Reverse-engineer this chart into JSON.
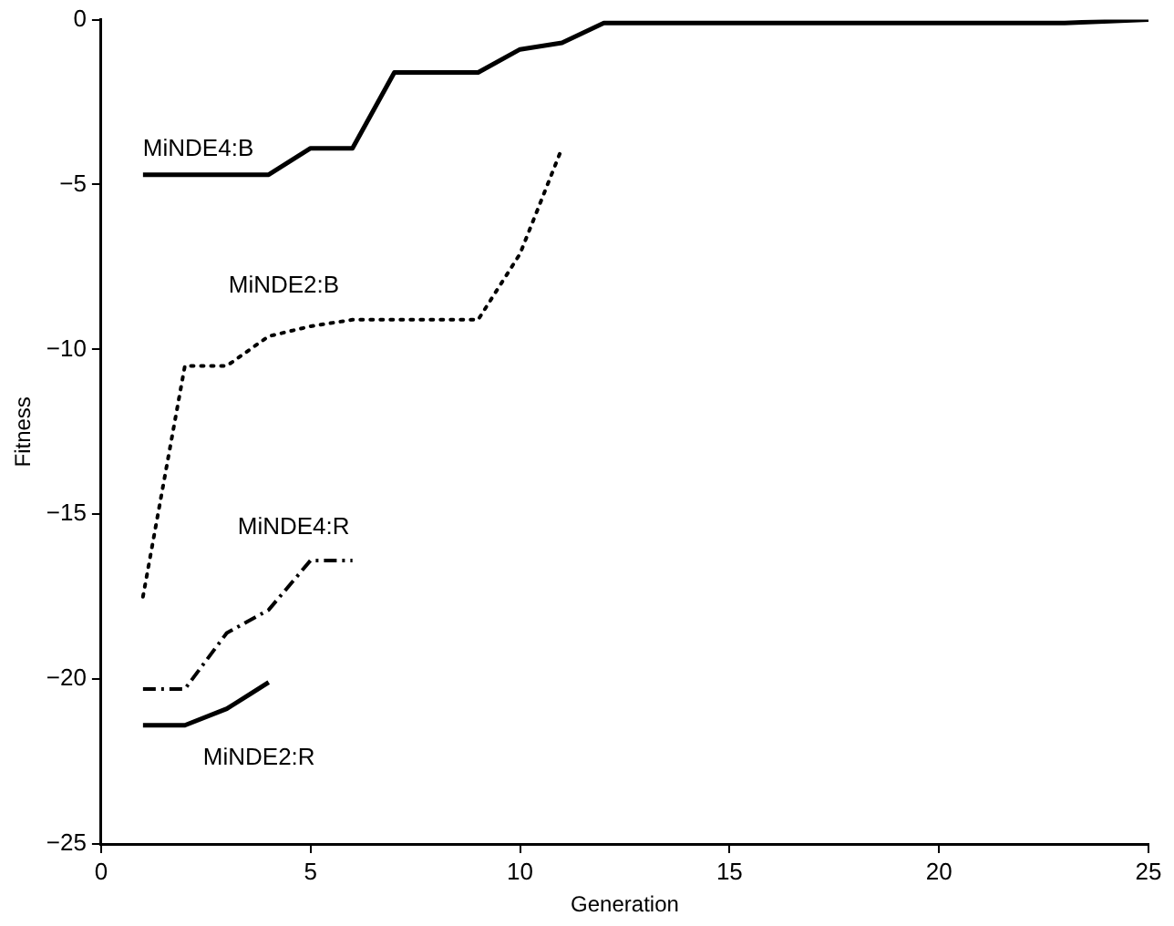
{
  "chart_data": {
    "type": "line",
    "xlabel": "Generation",
    "ylabel": "Fitness",
    "xlim": [
      0,
      25
    ],
    "xticks": [
      0,
      5,
      10,
      15,
      20,
      25
    ],
    "ylim": [
      -25,
      0
    ],
    "yticks": [
      -25,
      -20,
      -15,
      -10,
      -5,
      0
    ],
    "grid": false,
    "legend": false,
    "marker": "none",
    "series": [
      {
        "name": "MiNDE4:B",
        "color": "#000000",
        "line_style": "solid",
        "x": [
          1,
          4,
          5,
          6,
          7,
          9,
          10,
          11,
          12,
          23,
          25
        ],
        "values": [
          -4.7,
          -4.7,
          -3.9,
          -3.9,
          -1.6,
          -1.6,
          -0.9,
          -0.7,
          -0.1,
          -0.1,
          0
        ]
      },
      {
        "name": "MiNDE2:B",
        "color": "#000000",
        "line_style": "dotted",
        "x": [
          1,
          2,
          3,
          4,
          5,
          6,
          9,
          10,
          11
        ],
        "values": [
          -17.5,
          -10.5,
          -10.5,
          -9.6,
          -9.3,
          -9.1,
          -9.1,
          -7.1,
          -3.9
        ]
      },
      {
        "name": "MiNDE4:R",
        "color": "#000000",
        "line_style": "dashed",
        "x": [
          1,
          2,
          3,
          4,
          5,
          6
        ],
        "values": [
          -20.3,
          -20.3,
          -18.6,
          -17.9,
          -16.4,
          -16.4
        ]
      },
      {
        "name": "MiNDE2:R",
        "color": "#000000",
        "line_style": "solid",
        "x": [
          1,
          2,
          3,
          4
        ],
        "values": [
          -21.4,
          -21.4,
          -20.9,
          -20.1
        ]
      }
    ]
  }
}
